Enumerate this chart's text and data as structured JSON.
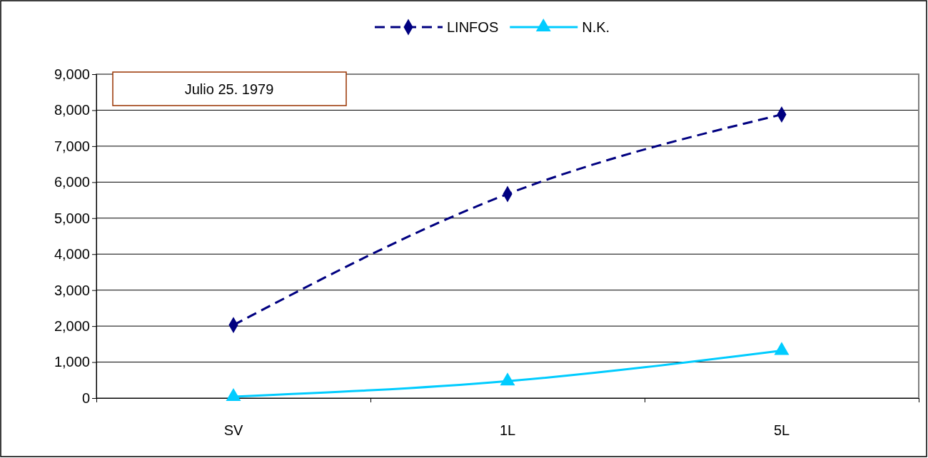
{
  "chart_data": {
    "type": "line",
    "categories": [
      "SV",
      "1L",
      "5L"
    ],
    "series": [
      {
        "name": "LINFOS",
        "color": "#000080",
        "values": [
          2030,
          5670,
          7880
        ],
        "marker": "diamond",
        "line_style": "dashed"
      },
      {
        "name": "N.K.",
        "color": "#00ccff",
        "values": [
          40,
          470,
          1320
        ],
        "marker": "triangle",
        "line_style": "solid"
      }
    ],
    "ylim": [
      0,
      9000
    ],
    "yticks": [
      {
        "value": 0,
        "label": "0"
      },
      {
        "value": 1000,
        "label": "1,000"
      },
      {
        "value": 2000,
        "label": "2,000"
      },
      {
        "value": 3000,
        "label": "3,000"
      },
      {
        "value": 4000,
        "label": "4,000"
      },
      {
        "value": 5000,
        "label": "5,000"
      },
      {
        "value": 6000,
        "label": "6,000"
      },
      {
        "value": 7000,
        "label": "7,000"
      },
      {
        "value": 8000,
        "label": "8,000"
      },
      {
        "value": 9000,
        "label": "9,000"
      }
    ],
    "grid": "y",
    "legend": "top",
    "annotations": [
      "Julio 25. 1979"
    ]
  }
}
